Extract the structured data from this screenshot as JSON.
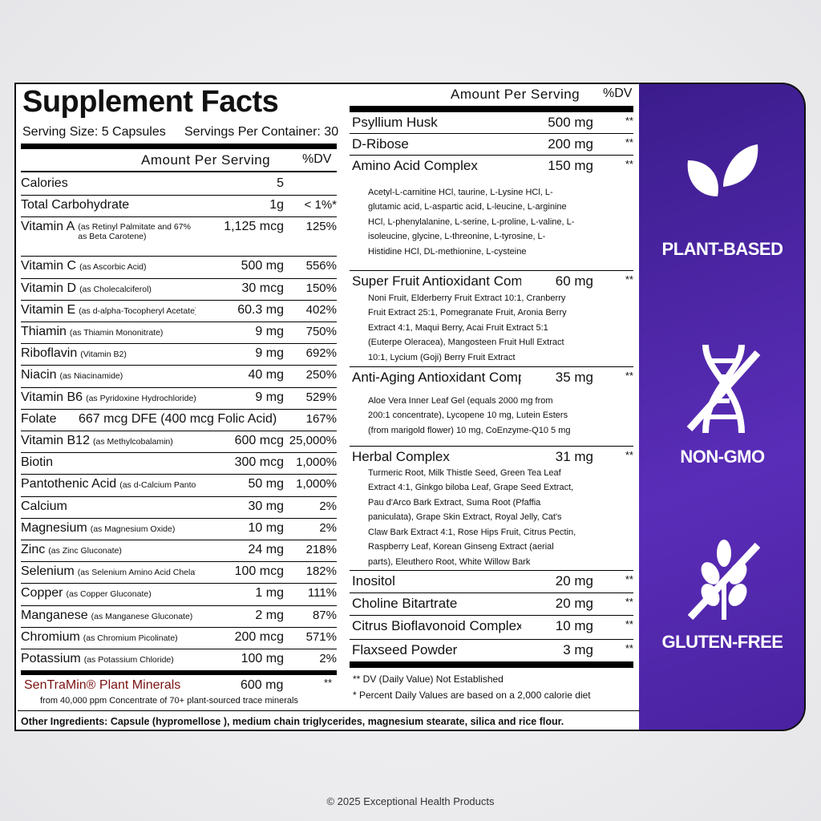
{
  "title": "Supplement Facts",
  "serving_size": "Serving Size: 5 Capsules",
  "servings_per_container": "Servings Per Container: 30",
  "left_header": {
    "amount": "Amount Per Serving",
    "dv": "%DV"
  },
  "left_rows": [
    {
      "name": "Calories",
      "amount": "5"
    },
    {
      "name": "Total Carbohydrate",
      "amount": "1g",
      "dv": "< 1%*"
    },
    {
      "name": "Vitamin A",
      "note": "(as Retinyl Palmitate and 67% as Beta Carotene)",
      "amount": "1,125 mcg",
      "dv": "125%"
    },
    {
      "name": "Vitamin C",
      "note": "(as Ascorbic Acid)",
      "amount": "500 mg",
      "dv": "556%"
    },
    {
      "name": "Vitamin D",
      "note": "(as Cholecalciferol)",
      "amount": "30 mcg",
      "dv": "150%"
    },
    {
      "name": "Vitamin E",
      "note": "(as d-alpha-Tocopheryl Acetate)",
      "amount": "60.3 mg",
      "dv": "402%"
    },
    {
      "name": "Thiamin",
      "note": "(as Thiamin Mononitrate)",
      "amount": "9 mg",
      "dv": "750%"
    },
    {
      "name": "Riboflavin",
      "note": "(Vitamin B2)",
      "amount": "9 mg",
      "dv": "692%"
    },
    {
      "name": "Niacin",
      "note": "(as Niacinamide)",
      "amount": "40 mg",
      "dv": "250%"
    },
    {
      "name": "Vitamin B6",
      "note": "(as Pyridoxine Hydrochloride)",
      "amount": "9 mg",
      "dv": "529%"
    },
    {
      "name": "Folate",
      "amount": "667 mcg DFE (400 mcg Folic Acid)",
      "dv": "167%"
    },
    {
      "name": "Vitamin B12",
      "note": "(as Methylcobalamin)",
      "amount": "600 mcg",
      "dv": "25,000%"
    },
    {
      "name": "Biotin",
      "amount": "300 mcg",
      "dv": "1,000%"
    },
    {
      "name": "Pantothenic Acid",
      "note": "(as d-Calcium Pantothenate)",
      "amount": "50 mg",
      "dv": "1,000%"
    },
    {
      "name": "Calcium",
      "amount": "30 mg",
      "dv": "2%"
    },
    {
      "name": "Magnesium",
      "note": "(as Magnesium Oxide)",
      "amount": "10 mg",
      "dv": "2%"
    },
    {
      "name": "Zinc",
      "note": "(as Zinc Gluconate)",
      "amount": "24 mg",
      "dv": "218%"
    },
    {
      "name": "Selenium",
      "note": "(as Selenium Amino Acid Chelate)",
      "amount": "100 mcg",
      "dv": "182%"
    },
    {
      "name": "Copper",
      "note": "(as Copper Gluconate)",
      "amount": "1 mg",
      "dv": "111%"
    },
    {
      "name": "Manganese",
      "note": "(as Manganese Gluconate)",
      "amount": "2 mg",
      "dv": "87%"
    },
    {
      "name": "Chromium",
      "note": "(as Chromium Picolinate)",
      "amount": "200 mcg",
      "dv": "571%"
    },
    {
      "name": "Potassium",
      "note": "(as Potassium Chloride)",
      "amount": "100 mg",
      "dv": "2%"
    }
  ],
  "featured": {
    "name": "SenTraMin® Plant Minerals",
    "amount": "600 mg",
    "dv": "**",
    "note": "from 40,000 ppm Concentrate of 70+ plant-sourced trace minerals"
  },
  "other_ingredients": "Other Ingredients: Capsule (hypromellose ), medium chain triglycerides, magnesium stearate, silica and rice flour.",
  "right_header": {
    "amount": "Amount Per Serving",
    "dv": "%DV"
  },
  "right_rows": [
    {
      "name": "Psyllium Husk",
      "amount": "500 mg",
      "dv": "**"
    },
    {
      "name": "D-Ribose",
      "amount": "200 mg",
      "dv": "**"
    },
    {
      "name": "Amino Acid Complex",
      "amount": "150 mg",
      "dv": "**",
      "detail": "Acetyl-L-carnitine HCl, taurine, L-Lysine HCl, L-glutamic acid, L-aspartic acid, L-leucine, L-arginine HCl, L-phenylalanine, L-serine, L-proline, L-valine, L-isoleucine, glycine, L-threonine, L-tyrosine, L-Histidine HCl, DL-methionine, L-cysteine"
    },
    {
      "name": "Super Fruit Antioxidant Complex",
      "amount": "60 mg",
      "dv": "**",
      "detail": "Noni Fruit, Elderberry Fruit Extract 10:1, Cranberry Fruit Extract 25:1, Pomegranate Fruit, Aronia Berry Extract 4:1, Maqui Berry, Acai Fruit Extract 5:1 (Euterpe Oleracea), Mangosteen Fruit Hull Extract 10:1, Lycium (Goji) Berry Fruit Extract"
    },
    {
      "name": "Anti-Aging Antioxidant Complex",
      "amount": "35 mg",
      "dv": "**",
      "detail": "Aloe Vera Inner Leaf Gel (equals 2000 mg from 200:1 concentrate), Lycopene 10 mg, Lutein Esters (from marigold flower) 10 mg, CoEnzyme-Q10 5 mg"
    },
    {
      "name": "Herbal Complex",
      "amount": "31 mg",
      "dv": "**",
      "detail": "Turmeric Root, Milk Thistle Seed, Green Tea Leaf Extract 4:1, Ginkgo biloba Leaf, Grape Seed Extract, Pau d'Arco Bark Extract, Suma Root (Pfaffia paniculata), Grape Skin Extract, Royal Jelly, Cat's Claw Bark Extract 4:1, Rose Hips Fruit, Citrus Pectin, Raspberry Leaf, Korean Ginseng Extract (aerial parts), Eleuthero Root, White Willow Bark"
    },
    {
      "name": "Inositol",
      "amount": "20 mg",
      "dv": "**"
    },
    {
      "name": "Choline Bitartrate",
      "amount": "20 mg",
      "dv": "**"
    },
    {
      "name": "Citrus Bioflavonoid Complex",
      "amount": "10 mg",
      "dv": "**"
    },
    {
      "name": "Flaxseed Powder",
      "amount": "3 mg",
      "dv": "**"
    }
  ],
  "footnotes": [
    "** DV (Daily Value) Not Established",
    "*  Percent Daily Values are based on  a 2,000 calorie diet"
  ],
  "badges": [
    "PLANT-BASED",
    "NON-GMO",
    "GLUTEN-FREE"
  ],
  "footer": "© 2025 Exceptional Health Products"
}
